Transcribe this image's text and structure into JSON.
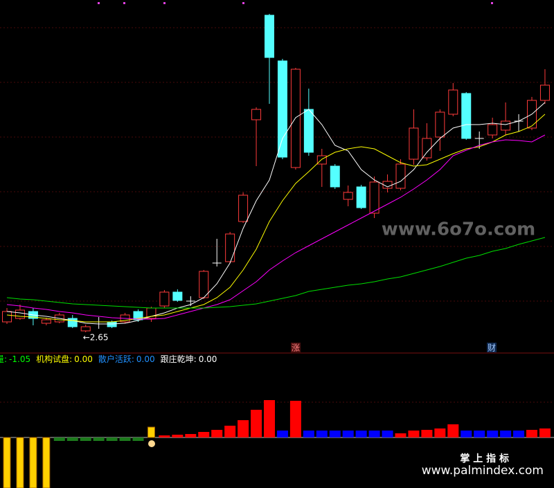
{
  "chart_data": [
    {
      "type": "candlestick",
      "ylim": [
        2.4,
        7.4
      ],
      "up_color": "#ff3b3b",
      "down_color": "#54ffff",
      "flat_color": "#ffffff",
      "open": [
        2.8,
        2.85,
        2.95,
        2.78,
        2.8,
        2.85,
        2.67,
        2.8,
        2.8,
        2.8,
        2.95,
        2.85,
        3.03,
        3.23,
        3.1,
        3.15,
        3.65,
        3.67,
        4.25,
        5.72,
        7.23,
        6.57,
        5.03,
        5.87,
        5.08,
        5.05,
        4.57,
        4.75,
        4.37,
        4.73,
        4.73,
        5.15,
        5.17,
        5.47,
        5.8,
        6.1,
        5.45,
        5.5,
        5.57,
        5.7,
        5.6,
        6.0
      ],
      "high": [
        3.0,
        3.05,
        3.0,
        2.86,
        2.93,
        2.9,
        2.76,
        2.87,
        2.82,
        2.93,
        2.98,
        3.02,
        3.26,
        3.27,
        3.17,
        3.55,
        4.0,
        4.1,
        4.67,
        5.9,
        7.25,
        6.6,
        6.47,
        6.17,
        5.3,
        5.08,
        4.77,
        4.78,
        4.9,
        4.93,
        5.15,
        5.87,
        5.67,
        5.87,
        6.25,
        6.12,
        5.55,
        5.75,
        5.97,
        5.8,
        6.05,
        6.45
      ],
      "low": [
        2.77,
        2.83,
        2.75,
        2.75,
        2.78,
        2.71,
        2.65,
        2.7,
        2.71,
        2.78,
        2.8,
        2.8,
        3.0,
        3.09,
        3.03,
        3.13,
        3.6,
        3.65,
        4.23,
        5.05,
        5.95,
        5.15,
        5.0,
        5.2,
        4.75,
        4.72,
        4.47,
        4.43,
        4.3,
        4.67,
        4.7,
        5.07,
        5.13,
        5.27,
        5.77,
        5.43,
        5.3,
        5.45,
        5.5,
        5.55,
        5.57,
        5.95
      ],
      "close": [
        2.95,
        2.97,
        2.85,
        2.83,
        2.9,
        2.73,
        2.73,
        2.8,
        2.73,
        2.9,
        2.83,
        3.0,
        3.23,
        3.11,
        3.1,
        3.53,
        3.65,
        4.07,
        4.63,
        5.87,
        6.62,
        5.18,
        6.45,
        5.25,
        5.2,
        4.75,
        4.67,
        4.45,
        4.82,
        4.83,
        5.08,
        5.6,
        5.45,
        5.83,
        6.15,
        5.45,
        5.45,
        5.65,
        5.7,
        5.7,
        6.0,
        6.22
      ],
      "series": [
        {
          "color": "#ffffff",
          "values": [
            2.95,
            2.93,
            2.9,
            2.88,
            2.85,
            2.82,
            2.78,
            2.77,
            2.77,
            2.78,
            2.82,
            2.88,
            2.93,
            3.0,
            3.05,
            3.15,
            3.35,
            3.65,
            4.15,
            4.55,
            4.85,
            5.45,
            5.75,
            5.87,
            5.65,
            5.35,
            5.27,
            5.0,
            4.85,
            4.75,
            4.83,
            5.0,
            5.25,
            5.45,
            5.6,
            5.65,
            5.65,
            5.67,
            5.65,
            5.7,
            5.8,
            5.97
          ]
        },
        {
          "color": "#ffff00",
          "values": [
            2.9,
            2.88,
            2.87,
            2.85,
            2.83,
            2.82,
            2.8,
            2.8,
            2.8,
            2.82,
            2.85,
            2.88,
            2.9,
            2.95,
            3.0,
            3.05,
            3.15,
            3.3,
            3.55,
            3.85,
            4.25,
            4.55,
            4.8,
            4.97,
            5.15,
            5.25,
            5.3,
            5.33,
            5.3,
            5.2,
            5.1,
            5.05,
            5.07,
            5.15,
            5.23,
            5.3,
            5.33,
            5.4,
            5.5,
            5.55,
            5.63,
            5.8
          ]
        },
        {
          "color": "#ff00ff",
          "values": [
            3.05,
            3.03,
            3.0,
            2.98,
            2.95,
            2.93,
            2.9,
            2.88,
            2.86,
            2.85,
            2.84,
            2.84,
            2.85,
            2.9,
            2.95,
            3.0,
            3.05,
            3.12,
            3.25,
            3.38,
            3.55,
            3.68,
            3.8,
            3.9,
            4.0,
            4.1,
            4.2,
            4.3,
            4.4,
            4.5,
            4.6,
            4.72,
            4.85,
            5.0,
            5.2,
            5.28,
            5.35,
            5.4,
            5.43,
            5.42,
            5.4,
            5.5
          ]
        },
        {
          "color": "#00e000",
          "values": [
            3.15,
            3.13,
            3.12,
            3.1,
            3.08,
            3.06,
            3.05,
            3.04,
            3.03,
            3.02,
            3.01,
            3.0,
            3.0,
            3.0,
            3.0,
            3.0,
            3.01,
            3.02,
            3.04,
            3.06,
            3.1,
            3.14,
            3.18,
            3.24,
            3.27,
            3.3,
            3.33,
            3.35,
            3.38,
            3.42,
            3.45,
            3.5,
            3.55,
            3.6,
            3.66,
            3.72,
            3.76,
            3.82,
            3.86,
            3.92,
            3.97,
            4.02
          ]
        }
      ],
      "annotations": [
        {
          "text": "←2.65",
          "value": 2.65
        }
      ],
      "markers": [
        {
          "text": "涨"
        },
        {
          "text": "财"
        }
      ],
      "watermark": "www.6o7o.com"
    },
    {
      "type": "bar",
      "ylim": [
        -7.3,
        7.2
      ],
      "values": [
        -7.3,
        -7.3,
        -7.3,
        -7.3,
        -0.5,
        -0.5,
        -0.5,
        -0.5,
        -0.5,
        -0.5,
        -0.5,
        1.5,
        0.3,
        0.4,
        0.5,
        0.8,
        1.1,
        1.7,
        2.5,
        4.0,
        5.4,
        1.0,
        5.3,
        1.0,
        1.0,
        1.0,
        1.0,
        1.0,
        1.0,
        1.0,
        0.6,
        1.0,
        1.1,
        1.3,
        1.9,
        1.0,
        1.0,
        1.0,
        1.0,
        1.0,
        1.1,
        1.3
      ],
      "colors": [
        "#ffd000",
        "#ffd000",
        "#ffd000",
        "#ffd000",
        "#1c7a1c",
        "#1c7a1c",
        "#1c7a1c",
        "#1c7a1c",
        "#1c7a1c",
        "#1c7a1c",
        "#1c7a1c",
        "#ffd000",
        "#ff0000",
        "#ff0000",
        "#ff0000",
        "#ff0000",
        "#ff0000",
        "#ff0000",
        "#ff0000",
        "#ff0000",
        "#ff0000",
        "#0000ff",
        "#ff0000",
        "#0000ff",
        "#0000ff",
        "#0000ff",
        "#0000ff",
        "#0000ff",
        "#0000ff",
        "#0000ff",
        "#ff0000",
        "#ff0000",
        "#ff0000",
        "#ff0000",
        "#ff0000",
        "#0000ff",
        "#0000ff",
        "#0000ff",
        "#0000ff",
        "#0000ff",
        "#ff0000",
        "#ff0000"
      ],
      "legend": [
        {
          "name": "量:",
          "value": -1.05,
          "value_label": "-1.05",
          "color": "#00ff00"
        },
        {
          "name": "机构试盘:",
          "value": 0,
          "value_label": "0.00",
          "color": "#ffff00"
        },
        {
          "name": "散户活跃:",
          "value": 0,
          "value_label": "0.00",
          "color": "#2090ff"
        },
        {
          "name": "跟庄乾坤:",
          "value": 0,
          "value_label": "0.00",
          "color": "#ffffff"
        }
      ],
      "brand": "掌 上 指 标",
      "url": "www.palmindex.com"
    }
  ]
}
